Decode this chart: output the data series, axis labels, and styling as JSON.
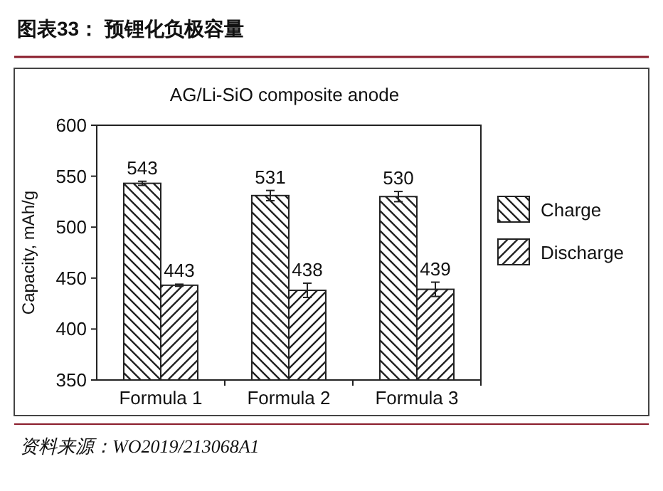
{
  "chart_data": {
    "type": "bar",
    "title": "图表33：  预锂化负极容量",
    "subtitle": "AG/Li-SiO composite anode",
    "ylabel": "Capacity, mAh/g",
    "categories": [
      "Formula 1",
      "Formula 2",
      "Formula 3"
    ],
    "series": [
      {
        "name": "Charge",
        "color": "#222222",
        "values": [
          543,
          531,
          530
        ],
        "errors": [
          2,
          5,
          5
        ]
      },
      {
        "name": "Discharge",
        "color": "#222222",
        "values": [
          443,
          438,
          439
        ],
        "errors": [
          1,
          7,
          7
        ]
      }
    ],
    "ylim": [
      350,
      600
    ],
    "yticks": [
      350,
      400,
      450,
      500,
      550,
      600
    ],
    "data_labels": true,
    "legend": "right",
    "grid": false,
    "annotations": [
      "资料来源：WO2019/213068A1"
    ]
  }
}
